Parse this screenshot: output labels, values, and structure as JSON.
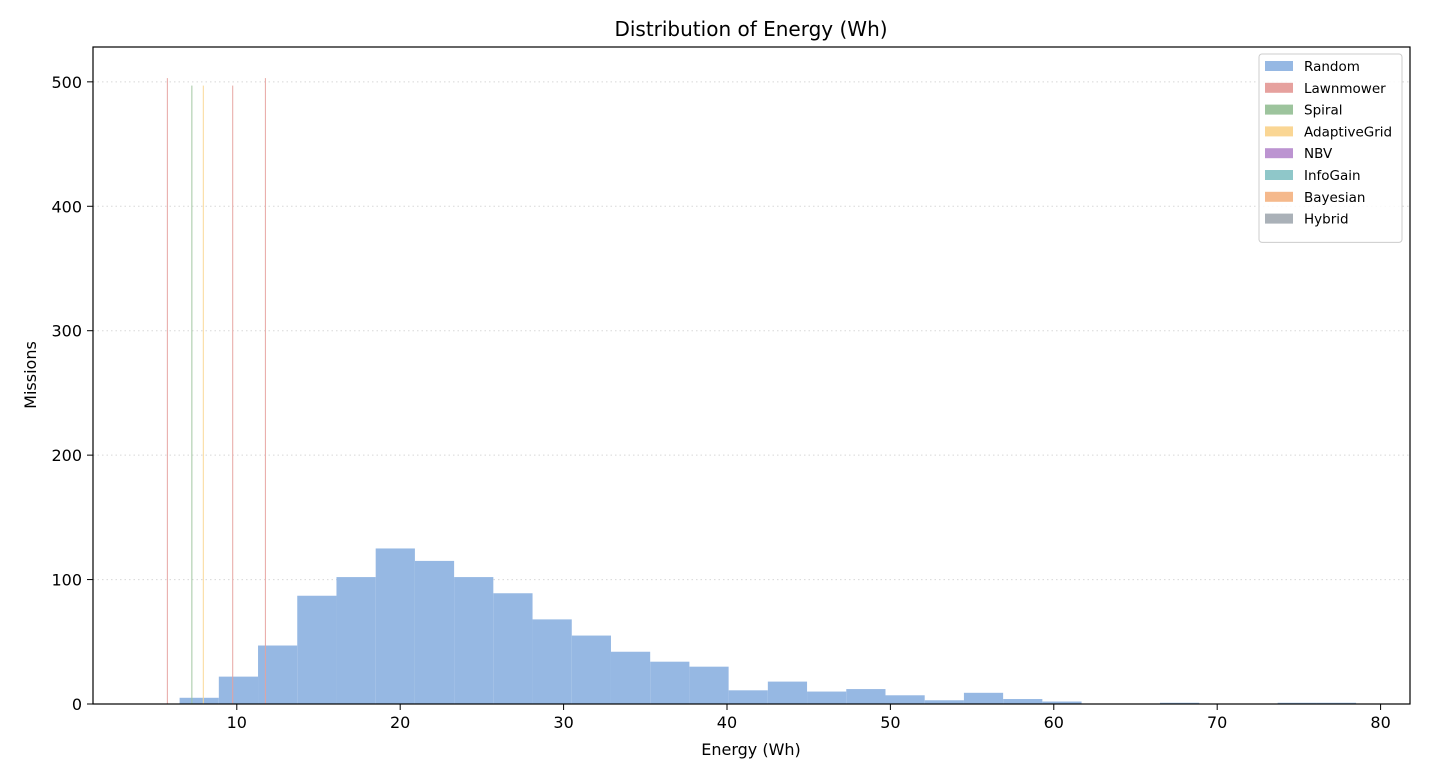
{
  "chart_data": {
    "type": "bar",
    "title": "Distribution of Energy (Wh)",
    "xlabel": "Energy (Wh)",
    "ylabel": "Missions",
    "xlim": [
      1.2,
      81.8
    ],
    "ylim": [
      0,
      528
    ],
    "xticks": [
      10,
      20,
      30,
      40,
      50,
      60,
      70,
      80
    ],
    "yticks": [
      0,
      100,
      200,
      300,
      400,
      500
    ],
    "grid": "horizontal-dotted",
    "legend_position": "top-right",
    "colors": {
      "Random": "#96b8e3",
      "Lawnmower": "#e6a19e",
      "Spiral": "#9dc49d",
      "AdaptiveGrid": "#fad694",
      "NBV": "#bc94d1",
      "InfoGain": "#8fc7c9",
      "Bayesian": "#f5b98c",
      "Hybrid": "#aab1b8"
    },
    "series": [
      {
        "name": "Random",
        "bins": [
          [
            6.5,
            8.9,
            5
          ],
          [
            8.9,
            11.3,
            22
          ],
          [
            11.3,
            13.7,
            47
          ],
          [
            13.7,
            16.1,
            87
          ],
          [
            16.1,
            18.5,
            102
          ],
          [
            18.5,
            20.9,
            125
          ],
          [
            20.9,
            23.3,
            115
          ],
          [
            23.3,
            25.7,
            102
          ],
          [
            25.7,
            28.1,
            89
          ],
          [
            28.1,
            30.5,
            68
          ],
          [
            30.5,
            32.9,
            55
          ],
          [
            32.9,
            35.3,
            42
          ],
          [
            35.3,
            37.7,
            34
          ],
          [
            37.7,
            40.1,
            30
          ],
          [
            40.1,
            42.5,
            11
          ],
          [
            42.5,
            44.9,
            18
          ],
          [
            44.9,
            47.3,
            10
          ],
          [
            47.3,
            49.7,
            12
          ],
          [
            49.7,
            52.1,
            7
          ],
          [
            52.1,
            54.5,
            3
          ],
          [
            54.5,
            56.9,
            9
          ],
          [
            56.9,
            59.3,
            4
          ],
          [
            59.3,
            61.7,
            2
          ],
          [
            61.7,
            64.1,
            0
          ],
          [
            64.1,
            66.5,
            0
          ],
          [
            66.5,
            68.9,
            1
          ],
          [
            68.9,
            71.3,
            0
          ],
          [
            71.3,
            73.7,
            0
          ],
          [
            73.7,
            76.1,
            1
          ],
          [
            76.1,
            78.5,
            1
          ]
        ]
      },
      {
        "name": "Lawnmower",
        "bins": [
          [
            5.72,
            5.78,
            503
          ],
          [
            9.72,
            9.78,
            497
          ],
          [
            11.72,
            11.78,
            503
          ]
        ]
      },
      {
        "name": "Spiral",
        "bins": [
          [
            7.22,
            7.28,
            497
          ]
        ]
      },
      {
        "name": "AdaptiveGrid",
        "bins": [
          [
            7.92,
            7.98,
            497
          ]
        ]
      },
      {
        "name": "NBV",
        "bins": []
      },
      {
        "name": "InfoGain",
        "bins": []
      },
      {
        "name": "Bayesian",
        "bins": []
      },
      {
        "name": "Hybrid",
        "bins": []
      }
    ]
  }
}
